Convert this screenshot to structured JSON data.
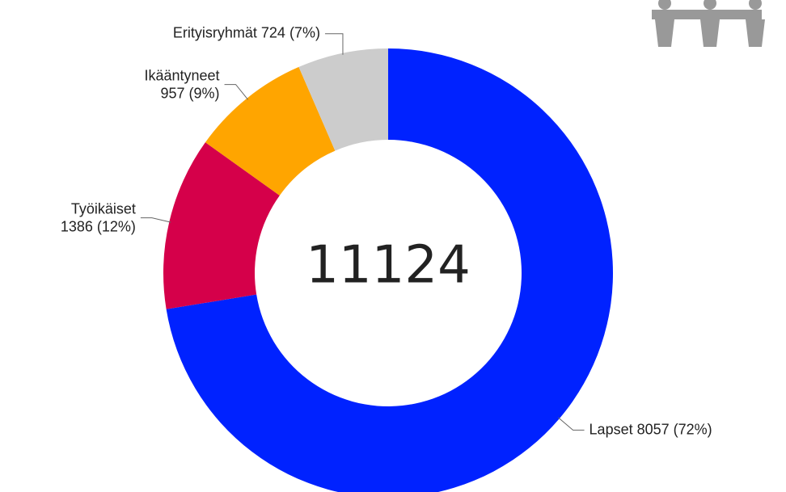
{
  "chart_data": {
    "type": "donut",
    "categories": [
      "Lapset",
      "Työikäiset",
      "Ikääntyneet",
      "Erityisryhmät"
    ],
    "values": [
      8057,
      1386,
      957,
      724
    ],
    "value_labels": [
      "8057 (72%)",
      "1386 (12%)",
      "957 (9%)",
      "724 (7%)"
    ],
    "colors": [
      "#0022ff",
      "#d5004a",
      "#ffa500",
      "#cccccc"
    ],
    "total": 11124
  }
}
